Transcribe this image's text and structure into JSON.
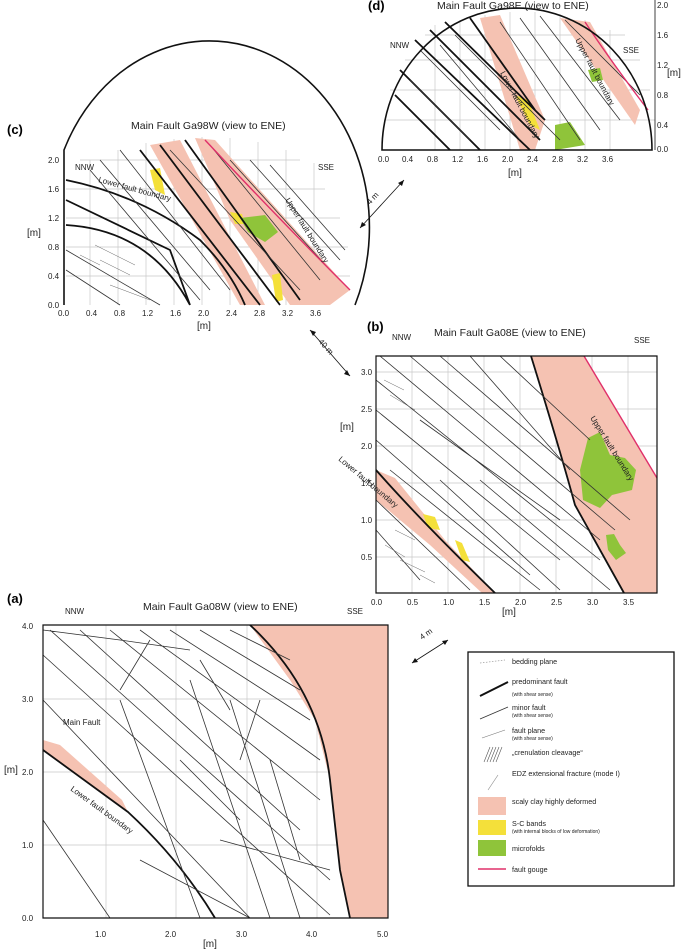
{
  "panels": {
    "d": {
      "letter": "(d)",
      "title": "Main Fault Ga98E (view to ENE)",
      "nnw": "NNW",
      "sse": "SSE",
      "xticks": [
        "0.0",
        "0.4",
        "0.8",
        "1.2",
        "1.6",
        "2.0",
        "2.4",
        "2.8",
        "3.2",
        "3.6"
      ],
      "yticks": [
        "2.0",
        "1.6",
        "1.2",
        "0.8",
        "0.4",
        "0.0"
      ],
      "unit": "[m]",
      "upper_boundary": "Upper fault boundary",
      "lower_boundary": "Lower fault boundary"
    },
    "c": {
      "letter": "(c)",
      "title": "Main Fault Ga98W (view to ENE)",
      "nnw": "NNW",
      "sse": "SSE",
      "xticks": [
        "0.0",
        "0.4",
        "0.8",
        "1.2",
        "1.6",
        "2.0",
        "2.4",
        "2.8",
        "3.2",
        "3.6"
      ],
      "yticks": [
        "2.0",
        "1.6",
        "1.2",
        "0.8",
        "0.4",
        "0.0"
      ],
      "unit": "[m]",
      "upper_boundary": "Upper fault boundary",
      "lower_boundary": "Lower fault boundary"
    },
    "b": {
      "letter": "(b)",
      "title": "Main Fault Ga08E (view to ENE)",
      "nnw": "NNW",
      "sse": "SSE",
      "xticks": [
        "0.0",
        "0.5",
        "1.0",
        "1.5",
        "2.0",
        "2.5",
        "3.0",
        "3.5"
      ],
      "yticks": [
        "3.0",
        "2.5",
        "2.0",
        "1.5",
        "1.0",
        "0.5"
      ],
      "unit": "[m]",
      "upper_boundary": "Upper fault boundary",
      "lower_boundary": "Lower fault boundary"
    },
    "a": {
      "letter": "(a)",
      "title": "Main Fault Ga08W (view to ENE)",
      "nnw": "NNW",
      "sse": "SSE",
      "xticks": [
        "1.0",
        "2.0",
        "3.0",
        "4.0",
        "5.0"
      ],
      "yticks": [
        "4.0",
        "3.0",
        "2.0",
        "1.0",
        "0.0"
      ],
      "unit": "[m]",
      "main_fault": "Main Fault",
      "lower_boundary": "Lower fault boundary"
    }
  },
  "distances": {
    "dc": "4 m",
    "cb": "40 m",
    "ba": "4 m"
  },
  "legend": {
    "items": [
      {
        "label": "bedding plane",
        "sub": ""
      },
      {
        "label": "predominant fault",
        "sub": "(with shear sense)"
      },
      {
        "label": "minor fault",
        "sub": "(with shear sense)"
      },
      {
        "label": "fault plane",
        "sub": "(with shear sense)"
      },
      {
        "label": "„crenulation cleavage“",
        "sub": ""
      },
      {
        "label": "EDZ extensional fracture (mode I)",
        "sub": ""
      },
      {
        "label": "scaly clay highly deformed",
        "sub": ""
      },
      {
        "label": "S-C bands",
        "sub": "(with internal blocks of low deformation)"
      },
      {
        "label": "microfolds",
        "sub": ""
      },
      {
        "label": "fault gouge",
        "sub": ""
      }
    ],
    "colors": {
      "scaly": "#f5c2b2",
      "sc": "#f4e03a",
      "micro": "#8fc43a",
      "gouge": "#e0306a"
    }
  }
}
